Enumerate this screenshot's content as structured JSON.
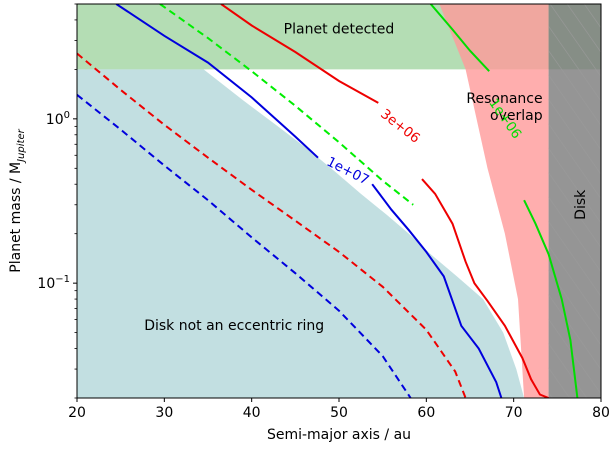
{
  "chart_data": {
    "type": "line",
    "xlabel": "Semi-major axis / au",
    "ylabel_main": "Planet mass / M",
    "ylabel_sub": "Jupiter",
    "xlim": [
      20,
      80
    ],
    "ylim": [
      0.02,
      5.0
    ],
    "yscale": "log",
    "x_ticks": [
      20,
      30,
      40,
      50,
      60,
      70,
      80
    ],
    "y_ticks": [
      {
        "value": 0.1,
        "base": "10",
        "exp": "−1"
      },
      {
        "value": 1.0,
        "base": "10",
        "exp": "0"
      }
    ],
    "grid": false,
    "regions": [
      {
        "name": "planet-detected",
        "label": "Planet detected",
        "label_at": [
          50,
          3.5
        ],
        "color": "#59b359",
        "opacity": 0.45,
        "polygon": [
          [
            20,
            2.0
          ],
          [
            80,
            2.0
          ],
          [
            80,
            5.0
          ],
          [
            20,
            5.0
          ]
        ]
      },
      {
        "name": "disk-not-eccentric",
        "label": "Disk not an eccentric ring",
        "label_at": [
          38,
          0.055
        ],
        "color": "#8fc4c8",
        "opacity": 0.55,
        "polygon": [
          [
            20,
            2.0
          ],
          [
            20,
            0.02
          ],
          [
            71.2,
            0.02
          ],
          [
            70.3,
            0.03
          ],
          [
            68.8,
            0.05
          ],
          [
            66.5,
            0.08
          ],
          [
            63.5,
            0.11
          ],
          [
            60.5,
            0.15
          ],
          [
            58.0,
            0.2
          ],
          [
            55.5,
            0.26
          ],
          [
            52.5,
            0.35
          ],
          [
            49.5,
            0.48
          ],
          [
            46.5,
            0.65
          ],
          [
            43.0,
            0.9
          ],
          [
            39.0,
            1.3
          ],
          [
            34.5,
            2.0
          ]
        ]
      },
      {
        "name": "resonance-overlap",
        "label": "Resonance overlap",
        "label_lines": [
          "Resonance",
          "overlap"
        ],
        "label_at": [
          67,
          1.2
        ],
        "color": "#ff9a9a",
        "opacity": 0.8,
        "polygon": [
          [
            74,
            0.02
          ],
          [
            74,
            5.0
          ],
          [
            61.5,
            5.0
          ],
          [
            64.5,
            2.0
          ],
          [
            67.0,
            0.5
          ],
          [
            69.0,
            0.2
          ],
          [
            70.5,
            0.08
          ],
          [
            71.2,
            0.02
          ]
        ]
      },
      {
        "name": "disk",
        "label": "Disk",
        "label_at": [
          77.7,
          0.3
        ],
        "color": "#7a7a7a",
        "opacity": 0.8,
        "hatched": true,
        "polygon": [
          [
            74,
            0.02
          ],
          [
            80,
            0.02
          ],
          [
            80,
            5.0
          ],
          [
            74,
            5.0
          ]
        ]
      }
    ],
    "series": [
      {
        "color": "#0000dd",
        "style": "solid",
        "x": [
          24.5,
          30,
          35,
          40,
          45,
          47.6
        ],
        "y": [
          5.0,
          3.2,
          2.2,
          1.35,
          0.78,
          0.58
        ]
      },
      {
        "color": "#0000dd",
        "style": "solid",
        "x": [
          53.8,
          56,
          58,
          60,
          62,
          64,
          66,
          68,
          68.6
        ],
        "y": [
          0.4,
          0.28,
          0.21,
          0.155,
          0.11,
          0.055,
          0.04,
          0.025,
          0.02
        ]
      },
      {
        "color": "#0000dd",
        "style": "dashed",
        "x": [
          20,
          25,
          30,
          35,
          40,
          45,
          50,
          55,
          58.2
        ],
        "y": [
          1.4,
          0.86,
          0.52,
          0.32,
          0.19,
          0.115,
          0.068,
          0.036,
          0.02
        ]
      },
      {
        "color": "#ee0000",
        "style": "solid",
        "x": [
          36.5,
          40,
          45,
          50,
          54.5
        ],
        "y": [
          5.0,
          3.7,
          2.55,
          1.7,
          1.25
        ]
      },
      {
        "color": "#ee0000",
        "style": "solid",
        "x": [
          59.5,
          61,
          63,
          64.5,
          65.5,
          67,
          69,
          71,
          72,
          73,
          74
        ],
        "y": [
          0.43,
          0.35,
          0.23,
          0.135,
          0.1,
          0.078,
          0.055,
          0.035,
          0.026,
          0.021,
          0.02
        ]
      },
      {
        "color": "#ee0000",
        "style": "dashed",
        "x": [
          20,
          25,
          30,
          35,
          40,
          45,
          50,
          55,
          60,
          63.3,
          64.5
        ],
        "y": [
          2.5,
          1.5,
          0.92,
          0.58,
          0.37,
          0.24,
          0.155,
          0.095,
          0.052,
          0.029,
          0.02
        ]
      },
      {
        "color": "#00dd00",
        "style": "solid",
        "x": [
          60.5,
          63,
          65,
          67.2
        ],
        "y": [
          5.0,
          3.5,
          2.6,
          1.95
        ]
      },
      {
        "color": "#00dd00",
        "style": "solid",
        "x": [
          71.2,
          72.5,
          74,
          75.5,
          76.5,
          77.3
        ],
        "y": [
          0.32,
          0.23,
          0.15,
          0.08,
          0.045,
          0.02
        ]
      },
      {
        "color": "#00ee00",
        "style": "dashed",
        "x": [
          29.5,
          35,
          40,
          45,
          50,
          55,
          58.5
        ],
        "y": [
          5.0,
          3.1,
          1.95,
          1.2,
          0.72,
          0.42,
          0.3
        ]
      }
    ],
    "line_labels": [
      {
        "text": "1e+07",
        "color": "#0000dd",
        "at": [
          51.0,
          0.48
        ],
        "angle": 27
      },
      {
        "text": "3e+06",
        "color": "#ee0000",
        "at": [
          57.0,
          0.9
        ],
        "angle": 38
      },
      {
        "text": "1e+06",
        "color": "#00dd00",
        "at": [
          69.0,
          1.0
        ],
        "angle": 55
      }
    ]
  }
}
